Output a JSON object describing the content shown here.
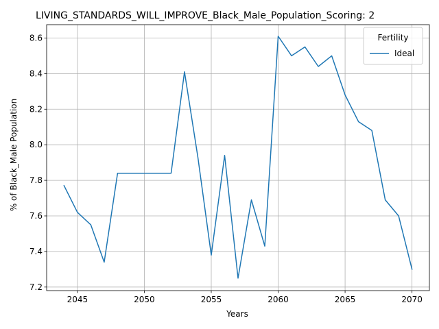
{
  "chart_data": {
    "type": "line",
    "title": "LIVING_STANDARDS_WILL_IMPROVE_Black_Male_Population_Scoring: 2",
    "xlabel": "Years",
    "ylabel": "% of Black_Male Population",
    "xlim": [
      2042.7,
      2071.3
    ],
    "ylim": [
      7.18,
      8.675
    ],
    "xticks": [
      2045,
      2050,
      2055,
      2060,
      2065,
      2070
    ],
    "yticks": [
      7.2,
      7.4,
      7.6,
      7.8,
      8.0,
      8.2,
      8.4,
      8.6
    ],
    "grid": true,
    "legend": {
      "title": "Fertility",
      "placement": "top-right"
    },
    "series": [
      {
        "name": "Ideal",
        "color": "#1f77b4",
        "x": [
          2044,
          2045,
          2046,
          2047,
          2048,
          2049,
          2050,
          2051,
          2052,
          2053,
          2054,
          2055,
          2056,
          2057,
          2058,
          2059,
          2060,
          2061,
          2062,
          2063,
          2064,
          2065,
          2066,
          2067,
          2068,
          2069,
          2070
        ],
        "values": [
          7.77,
          7.62,
          7.55,
          7.34,
          7.84,
          7.84,
          7.84,
          7.84,
          7.84,
          8.41,
          7.93,
          7.38,
          7.94,
          7.25,
          7.69,
          7.43,
          8.61,
          8.5,
          8.55,
          8.44,
          8.5,
          8.28,
          8.13,
          8.08,
          7.69,
          7.6,
          7.3
        ]
      }
    ]
  }
}
